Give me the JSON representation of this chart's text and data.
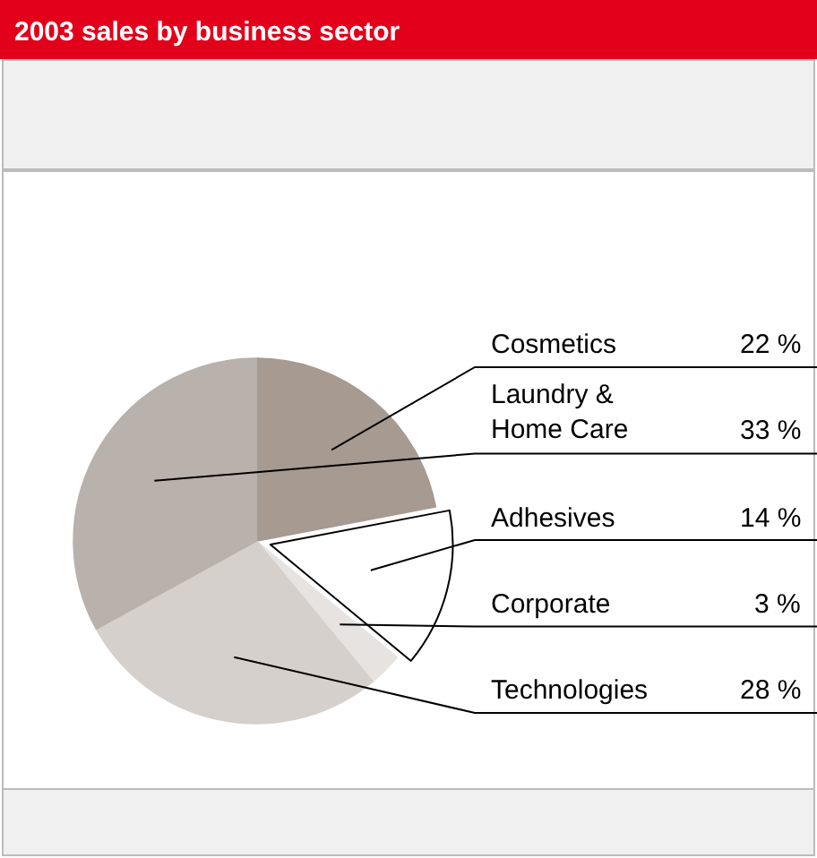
{
  "chart_data": {
    "type": "pie",
    "title": "2003 sales by business sector",
    "categories": [
      "Cosmetics",
      "Adhesives",
      "Corporate",
      "Technologies",
      "Laundry &\nHome Care"
    ],
    "values": [
      22,
      14,
      3,
      28,
      33
    ],
    "colors": [
      "#a69a91",
      "#ffffff",
      "#e6e3e0",
      "#d6d0cc",
      "#b9b1ab"
    ],
    "value_labels": [
      "22 %",
      "14 %",
      "3 %",
      "28 %",
      "33 %"
    ],
    "legend": false
  }
}
